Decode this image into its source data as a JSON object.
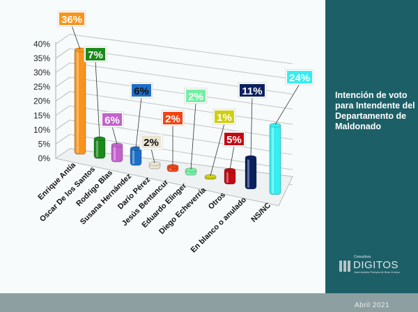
{
  "panel": {
    "title": "Intención de voto para Intendente del Departamento de Maldonado",
    "logo": {
      "top": "Consultora",
      "name": "DIGITOS",
      "sub": "José Andrés Pereyra de Bron & Asoc"
    }
  },
  "footer": {
    "date": "Abril 2021"
  },
  "chart_data": {
    "type": "bar",
    "title": "",
    "xlabel": "",
    "ylabel": "",
    "ylim": [
      0,
      40
    ],
    "yticks": [
      "0%",
      "5%",
      "10%",
      "15%",
      "20%",
      "25%",
      "30%",
      "35%",
      "40%"
    ],
    "grid": true,
    "three_d": true,
    "categories": [
      "Enrique Antía",
      "Oscar De los Santos",
      "Rodrigo Blas",
      "Susana Hernández",
      "Darío Pérez",
      "Jesús Bentancur",
      "Eduardo Elinger",
      "Diego Echeverría",
      "Otros",
      "En blanco o anulado",
      "NS/NC"
    ],
    "values": [
      36,
      7,
      6,
      6,
      2,
      2,
      2,
      1,
      5,
      11,
      24
    ],
    "data_labels": [
      "36%",
      "7%",
      "6%",
      "6%",
      "2%",
      "2%",
      "2%",
      "1%",
      "5%",
      "11%",
      "24%"
    ],
    "colors": [
      "#f7941d",
      "#1a8a1a",
      "#c262cc",
      "#1e6ec6",
      "#e9e5d2",
      "#f24412",
      "#74f0a4",
      "#cfcf12",
      "#c20a14",
      "#0c215e",
      "#34eef0"
    ]
  }
}
